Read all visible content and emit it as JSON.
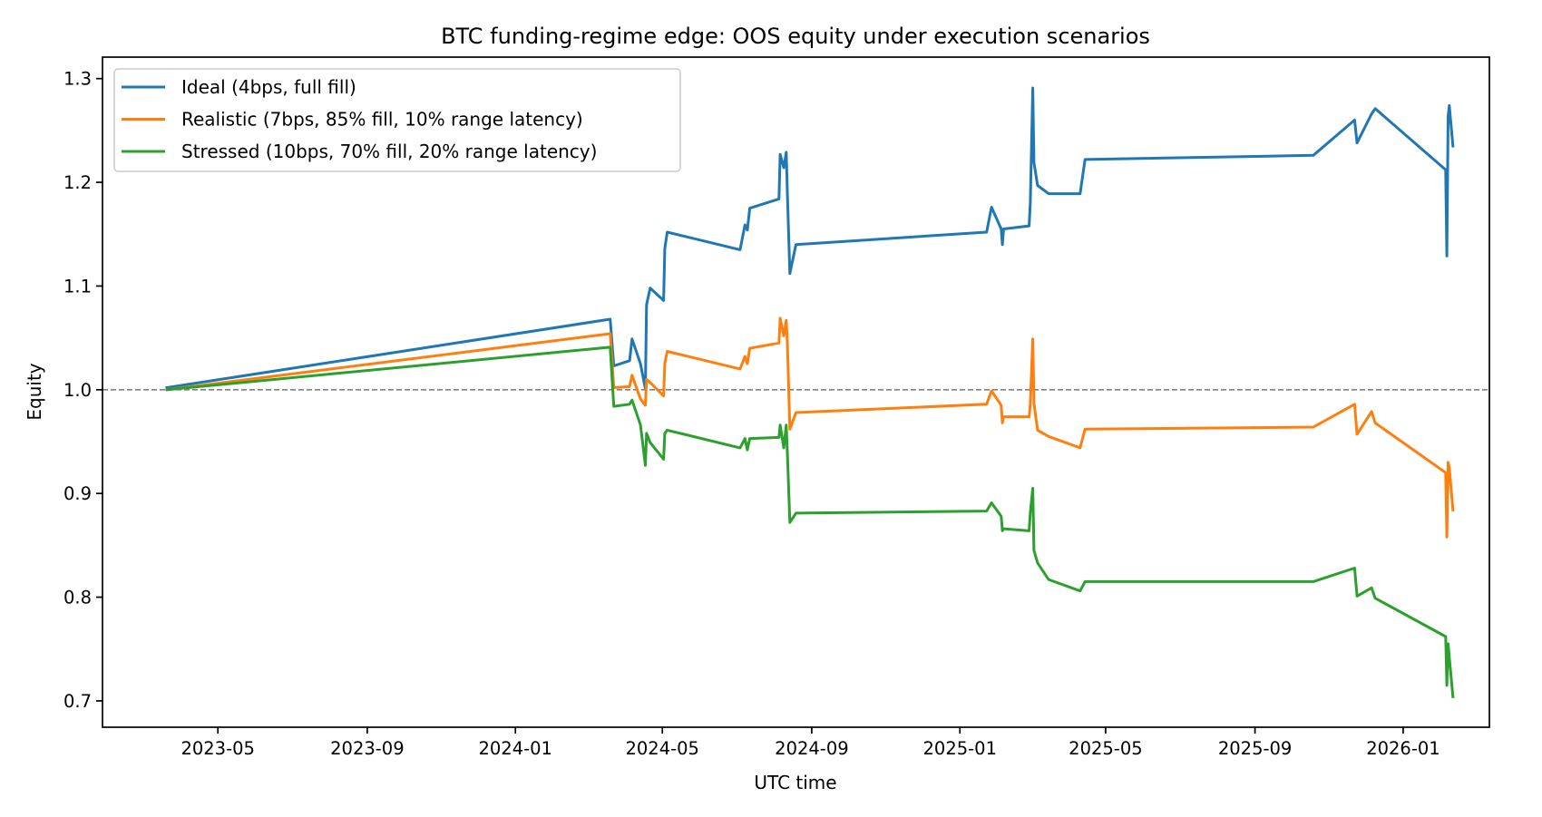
{
  "chart_data": {
    "type": "line",
    "title": "BTC funding-regime edge: OOS equity under execution scenarios",
    "xlabel": "UTC time",
    "ylabel": "Equity",
    "xlim": [
      "2023-01-26",
      "2026-03-13"
    ],
    "ylim": [
      0.6746,
      1.3207
    ],
    "xticks": [
      "2023-05",
      "2023-09",
      "2024-01",
      "2024-05",
      "2024-09",
      "2025-01",
      "2025-05",
      "2025-09",
      "2026-01"
    ],
    "yticks": [
      0.7,
      0.8,
      0.9,
      1.0,
      1.1,
      1.2,
      1.3
    ],
    "grid": false,
    "legend_position": "upper-left",
    "reference_line": {
      "y": 1.0,
      "style": "dashed",
      "color": "#808080"
    },
    "x": [
      "2023-03-20",
      "2024-03-19",
      "2024-03-22",
      "2024-04-04",
      "2024-04-06",
      "2024-04-13",
      "2024-04-17",
      "2024-04-18",
      "2024-04-21",
      "2024-05-02",
      "2024-05-03",
      "2024-05-05",
      "2024-07-04",
      "2024-07-08",
      "2024-07-10",
      "2024-07-12",
      "2024-08-05",
      "2024-08-06",
      "2024-08-09",
      "2024-08-11",
      "2024-08-12",
      "2024-08-14",
      "2024-08-19",
      "2025-01-23",
      "2025-01-27",
      "2025-02-04",
      "2025-02-05",
      "2025-02-06",
      "2025-02-27",
      "2025-02-28",
      "2025-03-02",
      "2025-03-03",
      "2025-03-06",
      "2025-03-15",
      "2025-04-10",
      "2025-04-14",
      "2025-10-19",
      "2025-11-22",
      "2025-11-24",
      "2025-12-06",
      "2025-12-09",
      "2026-02-05",
      "2026-02-06",
      "2026-02-07",
      "2026-02-08",
      "2026-02-11"
    ],
    "series": [
      {
        "name": "Ideal (4bps, full fill)",
        "color": "#1f77b4",
        "values": [
          1.002,
          1.068,
          1.023,
          1.028,
          1.049,
          1.025,
          1.001,
          1.082,
          1.098,
          1.086,
          1.136,
          1.152,
          1.135,
          1.159,
          1.154,
          1.175,
          1.184,
          1.227,
          1.214,
          1.229,
          1.188,
          1.112,
          1.14,
          1.152,
          1.176,
          1.155,
          1.14,
          1.155,
          1.158,
          1.181,
          1.291,
          1.219,
          1.197,
          1.189,
          1.189,
          1.222,
          1.226,
          1.26,
          1.238,
          1.266,
          1.271,
          1.212,
          1.129,
          1.264,
          1.274,
          1.235
        ]
      },
      {
        "name": "Realistic (7bps, 85% fill, 10% range latency)",
        "color": "#ff7f0e",
        "values": [
          1.0,
          1.054,
          1.002,
          1.003,
          1.014,
          0.991,
          0.985,
          1.01,
          1.007,
          0.994,
          1.025,
          1.037,
          1.02,
          1.032,
          1.025,
          1.04,
          1.045,
          1.069,
          1.052,
          1.067,
          1.044,
          0.962,
          0.978,
          0.986,
          0.999,
          0.985,
          0.968,
          0.974,
          0.974,
          0.987,
          1.049,
          0.987,
          0.961,
          0.955,
          0.944,
          0.962,
          0.964,
          0.986,
          0.957,
          0.979,
          0.968,
          0.92,
          0.858,
          0.93,
          0.925,
          0.884
        ]
      },
      {
        "name": "Stressed (10bps, 70% fill, 20% range latency)",
        "color": "#2ca02c",
        "values": [
          1.0,
          1.041,
          0.984,
          0.986,
          0.99,
          0.966,
          0.927,
          0.958,
          0.949,
          0.933,
          0.958,
          0.961,
          0.944,
          0.953,
          0.942,
          0.953,
          0.954,
          0.966,
          0.944,
          0.966,
          0.938,
          0.872,
          0.881,
          0.883,
          0.891,
          0.878,
          0.864,
          0.866,
          0.864,
          0.882,
          0.905,
          0.845,
          0.833,
          0.817,
          0.806,
          0.815,
          0.815,
          0.828,
          0.801,
          0.809,
          0.799,
          0.762,
          0.715,
          0.755,
          0.742,
          0.704
        ]
      }
    ]
  }
}
